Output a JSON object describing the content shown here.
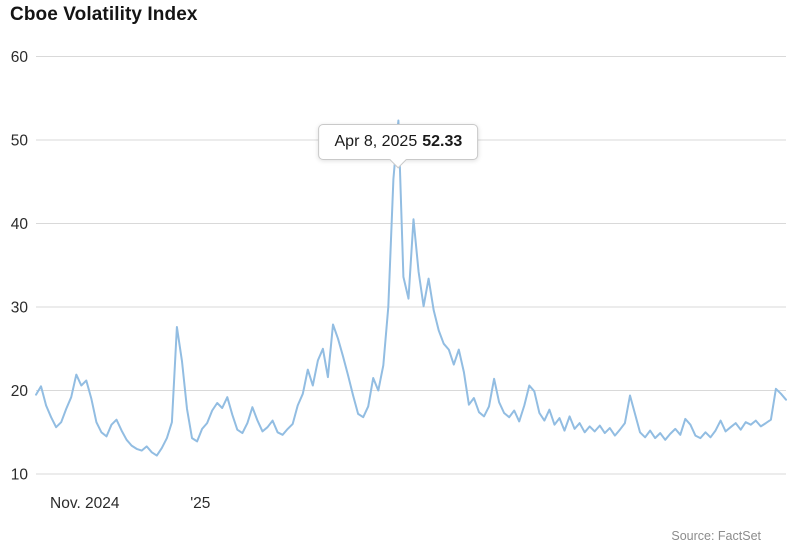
{
  "chart": {
    "title": "Cboe Volatility Index",
    "source": "Source: FactSet",
    "tooltip": {
      "date": "Apr 8, 2025",
      "value": "52.33"
    }
  },
  "chart_data": {
    "type": "line",
    "title": "Cboe Volatility Index",
    "series_name": "Cboe Volatility Index (VIX)",
    "line_color": "#92bde2",
    "grid_color": "#d9d9d9",
    "grid": "horizontal",
    "legend": "none",
    "ylim": [
      10,
      60
    ],
    "yticks": [
      60,
      50,
      40,
      30,
      20,
      10
    ],
    "x_range": [
      "Nov 2024",
      "Nov 2025"
    ],
    "xticks": [
      {
        "label": "Nov. 2024",
        "pos": 0.065
      },
      {
        "label": "'25",
        "pos": 0.219
      }
    ],
    "peak": {
      "index": 72,
      "date": "Apr 8, 2025",
      "value": 52.33
    },
    "values": [
      19.5,
      20.5,
      18.2,
      16.8,
      15.6,
      16.2,
      17.8,
      19.2,
      21.9,
      20.6,
      21.2,
      19.0,
      16.2,
      15.0,
      14.5,
      15.9,
      16.5,
      15.2,
      14.1,
      13.4,
      13.0,
      12.8,
      13.3,
      12.6,
      12.2,
      13.1,
      14.3,
      16.2,
      27.6,
      23.5,
      17.8,
      14.3,
      13.9,
      15.4,
      16.1,
      17.6,
      18.5,
      17.9,
      19.2,
      17.1,
      15.3,
      14.9,
      16.1,
      18.0,
      16.4,
      15.1,
      15.6,
      16.4,
      15.0,
      14.7,
      15.4,
      16.0,
      18.2,
      19.6,
      22.5,
      20.6,
      23.6,
      25.0,
      21.6,
      27.9,
      26.2,
      24.1,
      21.8,
      19.4,
      17.2,
      16.8,
      18.1,
      21.5,
      20.0,
      23.0,
      30.0,
      45.3,
      52.33,
      33.6,
      31.0,
      40.5,
      34.2,
      30.1,
      33.4,
      29.6,
      27.2,
      25.6,
      24.9,
      23.1,
      24.9,
      22.2,
      18.3,
      19.1,
      17.4,
      16.9,
      18.1,
      21.4,
      18.6,
      17.3,
      16.8,
      17.6,
      16.3,
      18.2,
      20.6,
      19.9,
      17.3,
      16.4,
      17.7,
      15.9,
      16.7,
      15.2,
      16.9,
      15.4,
      16.1,
      15.0,
      15.7,
      15.1,
      15.8,
      14.9,
      15.5,
      14.6,
      15.3,
      16.1,
      19.4,
      17.2,
      15.0,
      14.4,
      15.2,
      14.3,
      14.9,
      14.1,
      14.8,
      15.4,
      14.7,
      16.6,
      15.9,
      14.6,
      14.3,
      15.0,
      14.4,
      15.2,
      16.4,
      15.1,
      15.6,
      16.1,
      15.3,
      16.2,
      15.9,
      16.4,
      15.7,
      16.1,
      16.5,
      20.2,
      19.6,
      18.9
    ]
  }
}
